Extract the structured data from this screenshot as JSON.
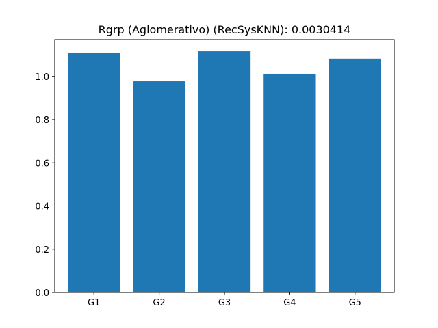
{
  "chart_data": {
    "type": "bar",
    "title": "Rgrp (Aglomerativo) (RecSysKNN): 0.0030414",
    "xlabel": "",
    "ylabel": "",
    "categories": [
      "G1",
      "G2",
      "G3",
      "G4",
      "G5"
    ],
    "values": [
      1.11,
      0.977,
      1.116,
      1.012,
      1.082
    ],
    "ylim": [
      0,
      1.17
    ],
    "yticks": [
      0.0,
      0.2,
      0.4,
      0.6,
      0.8,
      1.0
    ],
    "ytick_labels": [
      "0.0",
      "0.2",
      "0.4",
      "0.6",
      "0.8",
      "1.0"
    ],
    "grid": false,
    "legend": "none",
    "bar_color": "#1f77b4"
  }
}
